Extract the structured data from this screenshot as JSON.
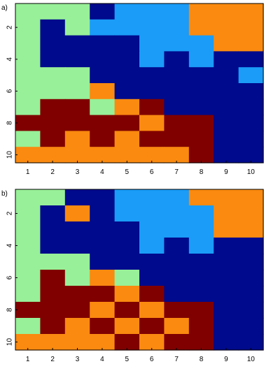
{
  "colors": {
    "1": "#98f098",
    "2": "#000a8c",
    "3": "#1a9cf8",
    "4": "#fa8a10",
    "5": "#800000"
  },
  "chart_data": [
    {
      "type": "heatmap",
      "panel_label": "a)",
      "x_ticks": [
        "1",
        "2",
        "3",
        "4",
        "5",
        "6",
        "7",
        "8",
        "9",
        "10"
      ],
      "y_ticks": [
        "2",
        "4",
        "6",
        "8",
        "10"
      ],
      "grid": false,
      "values": [
        [
          1,
          1,
          1,
          2,
          3,
          3,
          3,
          4,
          4,
          4
        ],
        [
          1,
          2,
          1,
          3,
          3,
          3,
          3,
          4,
          4,
          4
        ],
        [
          1,
          2,
          2,
          2,
          2,
          3,
          3,
          3,
          4,
          4
        ],
        [
          1,
          2,
          2,
          2,
          2,
          3,
          2,
          3,
          2,
          2
        ],
        [
          1,
          1,
          1,
          2,
          2,
          2,
          2,
          2,
          2,
          3
        ],
        [
          1,
          1,
          1,
          4,
          2,
          2,
          2,
          2,
          2,
          2
        ],
        [
          1,
          5,
          5,
          1,
          4,
          5,
          2,
          2,
          2,
          2
        ],
        [
          5,
          5,
          5,
          5,
          5,
          4,
          5,
          5,
          2,
          2
        ],
        [
          1,
          5,
          4,
          5,
          4,
          5,
          5,
          5,
          2,
          2
        ],
        [
          4,
          4,
          4,
          4,
          4,
          4,
          4,
          5,
          2,
          2
        ]
      ]
    },
    {
      "type": "heatmap",
      "panel_label": "b)",
      "x_ticks": [
        "1",
        "2",
        "3",
        "4",
        "5",
        "6",
        "7",
        "8",
        "9",
        "10"
      ],
      "y_ticks": [
        "2",
        "4",
        "6",
        "8",
        "10"
      ],
      "grid": false,
      "values": [
        [
          1,
          1,
          2,
          2,
          3,
          3,
          3,
          4,
          4,
          4
        ],
        [
          1,
          2,
          4,
          2,
          3,
          3,
          3,
          3,
          4,
          4
        ],
        [
          1,
          2,
          2,
          2,
          2,
          3,
          3,
          3,
          4,
          4
        ],
        [
          1,
          2,
          2,
          2,
          2,
          3,
          2,
          3,
          2,
          2
        ],
        [
          1,
          1,
          1,
          2,
          2,
          2,
          2,
          2,
          2,
          2
        ],
        [
          1,
          5,
          1,
          4,
          1,
          2,
          2,
          2,
          2,
          2
        ],
        [
          1,
          5,
          5,
          5,
          4,
          5,
          2,
          2,
          2,
          2
        ],
        [
          5,
          5,
          5,
          4,
          5,
          4,
          5,
          5,
          2,
          2
        ],
        [
          1,
          5,
          4,
          5,
          4,
          5,
          4,
          5,
          2,
          2
        ],
        [
          4,
          4,
          4,
          4,
          5,
          4,
          5,
          5,
          2,
          2
        ]
      ]
    }
  ]
}
